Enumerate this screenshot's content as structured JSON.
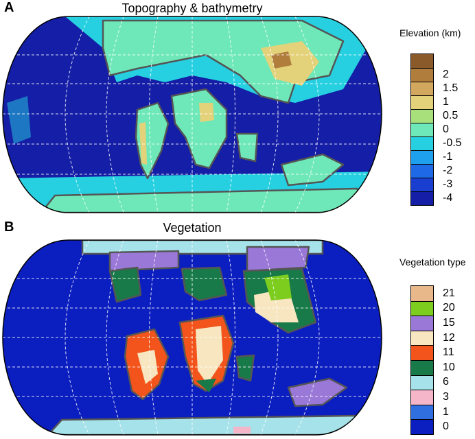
{
  "panel_a": {
    "letter": "A",
    "title": "Topography & bathymetry",
    "legend_title": "Elevation (km)",
    "legend": [
      {
        "label": "",
        "color": "#8a5a2b"
      },
      {
        "label": "2",
        "color": "#b07d3c"
      },
      {
        "label": "1.5",
        "color": "#d2a75e"
      },
      {
        "label": "1",
        "color": "#e4d27a"
      },
      {
        "label": "0.5",
        "color": "#a8e07c"
      },
      {
        "label": "0",
        "color": "#6ee8b8"
      },
      {
        "label": "-0.5",
        "color": "#26d0e0"
      },
      {
        "label": "-1",
        "color": "#1fa0ee"
      },
      {
        "label": "-2",
        "color": "#1e6ae6"
      },
      {
        "label": "-3",
        "color": "#1a3ed0"
      },
      {
        "label": "-4",
        "color": "#141ea6"
      }
    ]
  },
  "panel_b": {
    "letter": "B",
    "title": "Vegetation",
    "legend_title": "Vegetation type",
    "legend": [
      {
        "label": "21",
        "color": "#e8b88a"
      },
      {
        "label": "20",
        "color": "#7ccd1e"
      },
      {
        "label": "15",
        "color": "#9a78d8"
      },
      {
        "label": "12",
        "color": "#f7e6c0"
      },
      {
        "label": "11",
        "color": "#f2541b"
      },
      {
        "label": "10",
        "color": "#177a48"
      },
      {
        "label": "6",
        "color": "#a6e2ea"
      },
      {
        "label": "3",
        "color": "#f4b6c8"
      },
      {
        "label": "1",
        "color": "#2f6fe0"
      },
      {
        "label": "0",
        "color": "#0b1ec0"
      }
    ]
  },
  "map_colors": {
    "ocean_a": "#141ea6",
    "shelf_a": "#26d0e0",
    "land_a": "#6ee8b8",
    "high_a": "#e4d27a",
    "peak_a": "#b07d3c",
    "ocean_b": "#0b1ec0",
    "coast": "#555555",
    "graticule": "#ffffff"
  }
}
